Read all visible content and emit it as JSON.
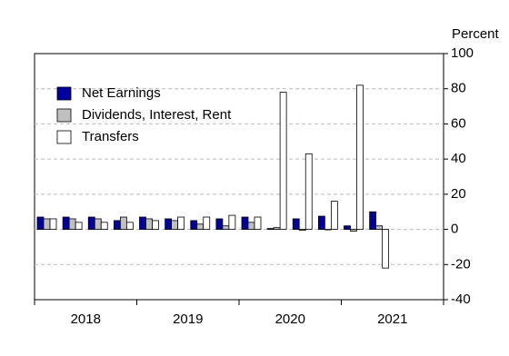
{
  "chart_data": {
    "type": "bar",
    "y_axis_title": "Percent",
    "categories": [
      null,
      null,
      null,
      null,
      null,
      null,
      null,
      null,
      null,
      null,
      null,
      null,
      null,
      null,
      null,
      null
    ],
    "groups": [
      "2018",
      "2019",
      "2020",
      "2021"
    ],
    "series": [
      {
        "name": "Net Earnings",
        "color": "#0000a0",
        "values": [
          7,
          7,
          7,
          5,
          7,
          6,
          5,
          6,
          7,
          0.5,
          6,
          7.5,
          2,
          10,
          null,
          null
        ]
      },
      {
        "name": "Dividends, Interest, Rent",
        "color": "#c0c0c0",
        "values": [
          6,
          6,
          6,
          7,
          6,
          5,
          3,
          2,
          4,
          1,
          -0.5,
          0,
          -1,
          2,
          null,
          null
        ]
      },
      {
        "name": "Transfers",
        "color": "#ffffff",
        "values": [
          6,
          4,
          4,
          4,
          5,
          7,
          7,
          8,
          7,
          78,
          43,
          16,
          82,
          -22,
          null,
          null
        ]
      }
    ],
    "ylim": [
      -40,
      100
    ],
    "yticks": [
      -40,
      -20,
      0,
      20,
      40,
      60,
      80,
      100
    ],
    "grid": true
  }
}
